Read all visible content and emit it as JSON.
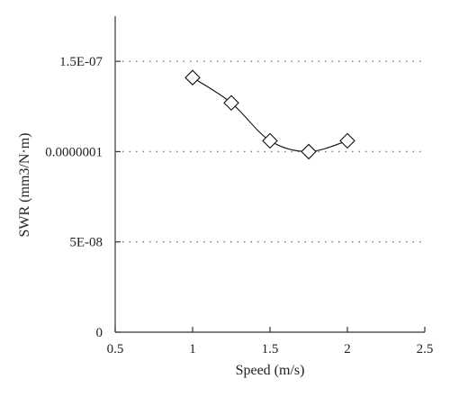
{
  "chart_data": {
    "type": "line",
    "title": "",
    "xlabel": "Speed (m/s)",
    "ylabel": "SWR (mm3/N·m)",
    "xlim": [
      0.5,
      2.5
    ],
    "ylim": [
      0,
      1.75e-07
    ],
    "x_ticks": [
      {
        "value": 0.5,
        "label": "0.5"
      },
      {
        "value": 1,
        "label": "1"
      },
      {
        "value": 1.5,
        "label": "1.5"
      },
      {
        "value": 2,
        "label": "2"
      },
      {
        "value": 2.5,
        "label": "2.5"
      }
    ],
    "y_ticks": [
      {
        "value": 0,
        "label": "0"
      },
      {
        "value": 5e-08,
        "label": "5E-08"
      },
      {
        "value": 1e-07,
        "label": "0.0000001"
      },
      {
        "value": 1.5e-07,
        "label": "1.5E-07"
      }
    ],
    "grid": "horizontal dotted",
    "legend": "none",
    "marker": "open-diamond",
    "line_style": "smooth",
    "series": [
      {
        "x": [
          1,
          1.25,
          1.5,
          1.75,
          2
        ],
        "values": [
          1.41e-07,
          1.27e-07,
          1.06e-07,
          1e-07,
          1.06e-07
        ]
      }
    ],
    "colors": {
      "line": "#111111",
      "marker_fill": "#ffffff",
      "axis": "#333333",
      "grid": "#777777"
    }
  }
}
